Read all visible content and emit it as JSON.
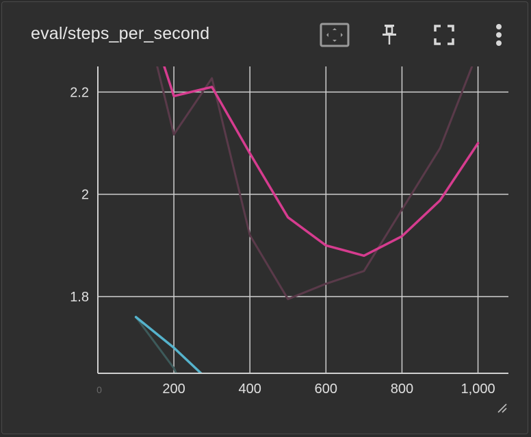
{
  "card": {
    "title": "eval/steps_per_second"
  },
  "toolbar": {
    "fit_icon": "fit-domain-icon",
    "pin_icon": "pin-icon",
    "fullscreen_icon": "fullscreen-icon",
    "more_icon": "more-vert-icon"
  },
  "colors": {
    "main_series": "#d63c8f",
    "raw_series": "#5a3a4a",
    "cyan_series": "#55b3cc",
    "cyan_raw": "#3d5a5a",
    "grid": "#d0d0d0",
    "text": "#e0e0e0"
  },
  "chart_data": {
    "type": "line",
    "title": "",
    "xlabel": "",
    "ylabel": "",
    "xlim": [
      0,
      1080
    ],
    "ylim": [
      1.65,
      2.25
    ],
    "x_ticks": [
      0,
      200,
      400,
      600,
      800,
      1000
    ],
    "x_tick_labels": [
      "0",
      "200",
      "400",
      "600",
      "800",
      "1,000"
    ],
    "y_ticks": [
      1.8,
      2.0,
      2.2
    ],
    "y_tick_labels": [
      "1.8",
      "2",
      "2.2"
    ],
    "grid": true,
    "series": [
      {
        "color": "#5a3a4a",
        "x": [
          100,
          200,
          300,
          400,
          500,
          600,
          700,
          800,
          900,
          1000
        ],
        "y": [
          2.42,
          2.117,
          2.227,
          1.92,
          1.795,
          1.825,
          1.85,
          1.97,
          2.09,
          2.28
        ]
      },
      {
        "color": "#d63c8f",
        "x": [
          100,
          200,
          300,
          400,
          500,
          600,
          700,
          800,
          900,
          1000
        ],
        "y": [
          2.42,
          2.192,
          2.21,
          2.08,
          1.955,
          1.9,
          1.88,
          1.918,
          1.988,
          2.1
        ]
      },
      {
        "color": "#3d5a5a",
        "x": [
          100,
          200,
          300
        ],
        "y": [
          1.76,
          1.66,
          1.5
        ]
      },
      {
        "color": "#55b3cc",
        "x": [
          100,
          200,
          300
        ],
        "y": [
          1.76,
          1.7,
          1.63
        ]
      }
    ]
  }
}
